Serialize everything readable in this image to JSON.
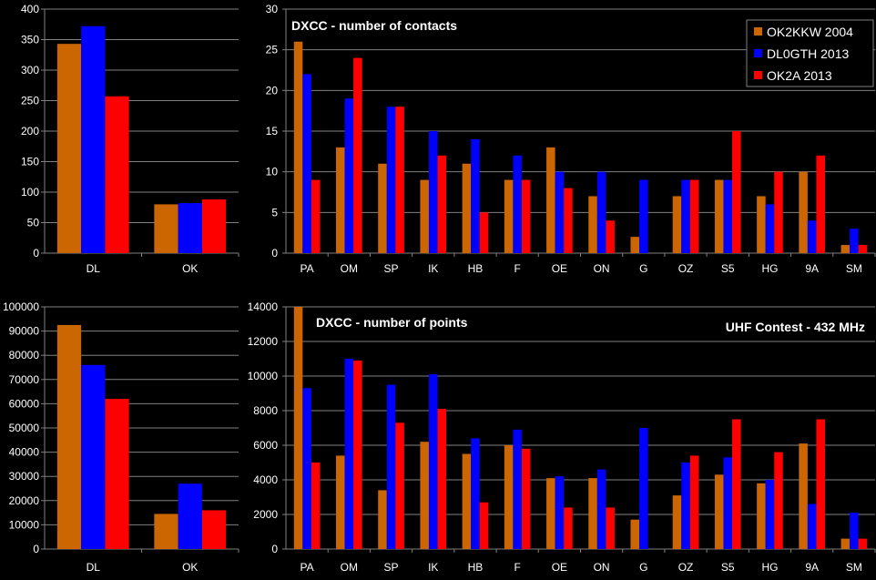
{
  "colors": {
    "ok2kkw": "#cc6600",
    "dl0gth": "#0000ff",
    "ok2a": "#ff0000",
    "plot_bg": "#000000",
    "grid": "#808080",
    "text": "#ffffff"
  },
  "legend": [
    "OK2KKW 2004",
    "DL0GTH 2013",
    "OK2A 2013"
  ],
  "chart_data": [
    {
      "id": "contacts-by-country",
      "type": "bar",
      "title": "",
      "categories": [
        "DL",
        "OK"
      ],
      "yticks": [
        "0",
        "50",
        "100",
        "150",
        "200",
        "250",
        "300",
        "350",
        "400"
      ],
      "ylim": [
        0,
        400
      ],
      "grid": true,
      "series": [
        {
          "name": "OK2KKW 2004",
          "values": [
            343,
            80
          ]
        },
        {
          "name": "DL0GTH 2013",
          "values": [
            372,
            82
          ]
        },
        {
          "name": "OK2A 2013",
          "values": [
            257,
            88
          ]
        }
      ]
    },
    {
      "id": "contacts-dxcc",
      "type": "bar",
      "title": "DXCC - number of contacts",
      "categories": [
        "PA",
        "OM",
        "SP",
        "IK",
        "HB",
        "F",
        "OE",
        "ON",
        "G",
        "OZ",
        "S5",
        "HG",
        "9A",
        "SM"
      ],
      "yticks": [
        "0",
        "5",
        "10",
        "15",
        "20",
        "25",
        "30"
      ],
      "ylim": [
        0,
        30
      ],
      "grid": true,
      "legend_position": "top-right",
      "series": [
        {
          "name": "OK2KKW 2004",
          "values": [
            26,
            13,
            11,
            9,
            11,
            9,
            13,
            7,
            2,
            7,
            9,
            7,
            10,
            1
          ]
        },
        {
          "name": "DL0GTH 2013",
          "values": [
            22,
            19,
            18,
            15,
            14,
            12,
            10,
            10,
            9,
            9,
            9,
            6,
            4,
            3
          ]
        },
        {
          "name": "OK2A 2013",
          "values": [
            9,
            24,
            18,
            12,
            5,
            9,
            8,
            4,
            0,
            9,
            15,
            10,
            12,
            1
          ]
        }
      ]
    },
    {
      "id": "points-by-country",
      "type": "bar",
      "title": "",
      "categories": [
        "DL",
        "OK"
      ],
      "yticks": [
        "0",
        "10000",
        "20000",
        "30000",
        "40000",
        "50000",
        "60000",
        "70000",
        "80000",
        "90000",
        "100000"
      ],
      "ylim": [
        0,
        100000
      ],
      "grid": true,
      "series": [
        {
          "name": "OK2KKW 2004",
          "values": [
            92500,
            14500
          ]
        },
        {
          "name": "DL0GTH 2013",
          "values": [
            76000,
            27000
          ]
        },
        {
          "name": "OK2A 2013",
          "values": [
            62000,
            16000
          ]
        }
      ]
    },
    {
      "id": "points-dxcc",
      "type": "bar",
      "title": "DXCC - number of points",
      "subtitle": "UHF Contest - 432 MHz",
      "categories": [
        "PA",
        "OM",
        "SP",
        "IK",
        "HB",
        "F",
        "OE",
        "ON",
        "G",
        "OZ",
        "S5",
        "HG",
        "9A",
        "SM"
      ],
      "yticks": [
        "0",
        "2000",
        "4000",
        "6000",
        "8000",
        "10000",
        "12000",
        "14000"
      ],
      "ylim": [
        0,
        14000
      ],
      "grid": true,
      "series": [
        {
          "name": "OK2KKW 2004",
          "values": [
            14000,
            5400,
            3400,
            6200,
            5500,
            6000,
            4100,
            4100,
            1700,
            3100,
            4300,
            3800,
            6100,
            600
          ]
        },
        {
          "name": "DL0GTH 2013",
          "values": [
            9300,
            11000,
            9500,
            10100,
            6400,
            6900,
            4200,
            4600,
            7000,
            5000,
            5300,
            4000,
            2600,
            2100
          ]
        },
        {
          "name": "OK2A 2013",
          "values": [
            5000,
            10900,
            7300,
            8100,
            2700,
            5800,
            2400,
            2400,
            0,
            5400,
            7500,
            5600,
            7500,
            600
          ]
        }
      ]
    }
  ]
}
